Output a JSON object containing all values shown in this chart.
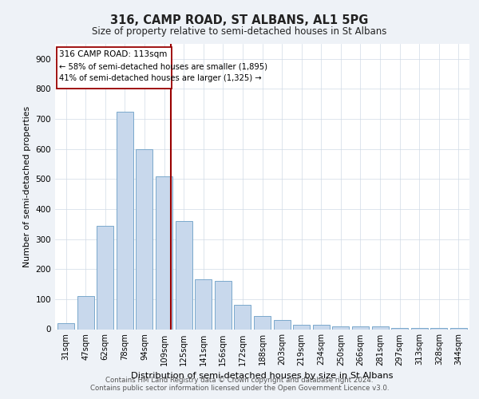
{
  "title": "316, CAMP ROAD, ST ALBANS, AL1 5PG",
  "subtitle": "Size of property relative to semi-detached houses in St Albans",
  "xlabel": "Distribution of semi-detached houses by size in St Albans",
  "ylabel": "Number of semi-detached properties",
  "categories": [
    "31sqm",
    "47sqm",
    "62sqm",
    "78sqm",
    "94sqm",
    "109sqm",
    "125sqm",
    "141sqm",
    "156sqm",
    "172sqm",
    "188sqm",
    "203sqm",
    "219sqm",
    "234sqm",
    "250sqm",
    "266sqm",
    "281sqm",
    "297sqm",
    "313sqm",
    "328sqm",
    "344sqm"
  ],
  "values": [
    20,
    110,
    345,
    725,
    600,
    510,
    360,
    165,
    160,
    80,
    45,
    30,
    15,
    15,
    10,
    10,
    10,
    5,
    5,
    5,
    5
  ],
  "bar_color": "#c8d8ec",
  "bar_edge_color": "#7aa8cc",
  "property_line_x": 5.35,
  "property_label": "316 CAMP ROAD: 113sqm",
  "annotation_line1": "← 58% of semi-detached houses are smaller (1,895)",
  "annotation_line2": "41% of semi-detached houses are larger (1,325) →",
  "red_line_color": "#990000",
  "annotation_box_color": "#ffffff",
  "annotation_box_edge": "#990000",
  "ylim": [
    0,
    950
  ],
  "yticks": [
    0,
    100,
    200,
    300,
    400,
    500,
    600,
    700,
    800,
    900
  ],
  "footer_line1": "Contains HM Land Registry data © Crown copyright and database right 2024.",
  "footer_line2": "Contains public sector information licensed under the Open Government Licence v3.0.",
  "background_color": "#eef2f7",
  "plot_background": "#ffffff",
  "grid_color": "#d0dae6"
}
